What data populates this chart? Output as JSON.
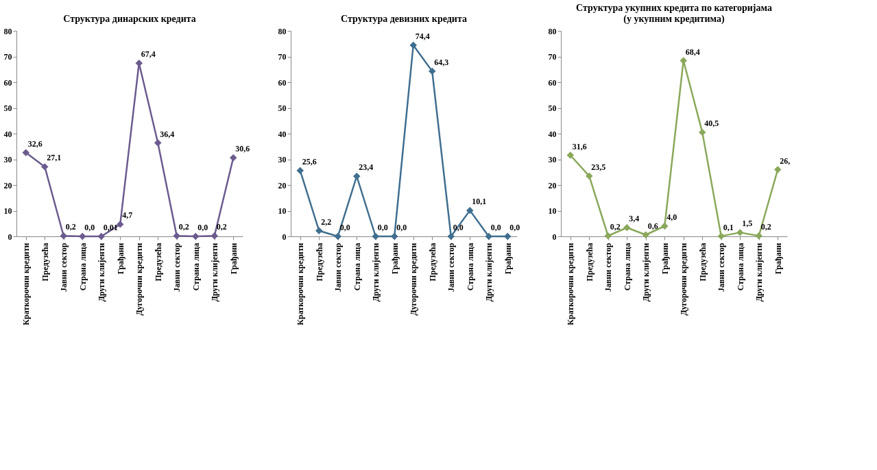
{
  "chart_data": [
    {
      "type": "line",
      "title": "Структура динарских кредита",
      "categories": [
        "Краткорочни кредити",
        "Предузећа",
        "Јавни сектор",
        "Страна лица",
        "Други клијенти",
        "Грађани",
        "Дугорочни кредити",
        "Предузећа",
        "Јавни сектор",
        "Страна лица",
        "Други клијенти",
        "Грађани"
      ],
      "series": [
        {
          "color": "#6b5b8e",
          "values": [
            32.6,
            27.1,
            0.2,
            0.0,
            0.01,
            4.7,
            67.4,
            36.4,
            0.2,
            0.0,
            0.2,
            30.6
          ],
          "value_labels": [
            "32,6",
            "27,1",
            "0,2",
            "0,0",
            "0,01",
            "4,7",
            "67,4",
            "36,4",
            "0,2",
            "0,0",
            "0,2",
            "30,6"
          ]
        }
      ],
      "ylim": [
        0,
        80
      ],
      "yticks": [
        0,
        10,
        20,
        30,
        40,
        50,
        60,
        70,
        80
      ],
      "grid": false,
      "marker": "diamond",
      "line_style": "solid"
    },
    {
      "type": "line",
      "title": "Структура девизних кредита",
      "categories": [
        "Краткорочни кредити",
        "Предузећа",
        "Јавни сектор",
        "Страна лица",
        "Други клијенти",
        "Грађани",
        "Дугорочни кредити",
        "Предузећа",
        "Јавни сектор",
        "Страна лица",
        "Други клијенти",
        "Грађани"
      ],
      "series": [
        {
          "color": "#3f6e8f",
          "values": [
            25.6,
            2.2,
            0.0,
            23.4,
            0.0,
            0.0,
            74.4,
            64.3,
            0.0,
            10.1,
            0.0,
            0.0
          ],
          "value_labels": [
            "25,6",
            "2,2",
            "0,0",
            "23,4",
            "0,0",
            "0,0",
            "74,4",
            "64,3",
            "0,0",
            "10,1",
            "0,0",
            "0,0"
          ]
        }
      ],
      "ylim": [
        0,
        80
      ],
      "yticks": [
        0,
        10,
        20,
        30,
        40,
        50,
        60,
        70,
        80
      ],
      "grid": false,
      "marker": "diamond",
      "line_style": "solid"
    },
    {
      "type": "line",
      "title": "Структура укупних кредита по категоријама\n(у укупним кредитима)",
      "categories": [
        "Краткорочни кредити",
        "Предузећа",
        "Јавни сектор",
        "Страна лица",
        "Други клијенти",
        "Грађани",
        "Дугорочни кредити",
        "Предузећа",
        "Јавни сектор",
        "Страна лица",
        "Други клијенти",
        "Грађани"
      ],
      "series": [
        {
          "color": "#8aa85a",
          "values": [
            31.6,
            23.5,
            0.2,
            3.4,
            0.6,
            4.0,
            68.4,
            40.5,
            0.1,
            1.5,
            0.2,
            26.0
          ],
          "value_labels": [
            "31,6",
            "23,5",
            "0,2",
            "3,4",
            "0,6",
            "4,0",
            "68,4",
            "40,5",
            "0,1",
            "1,5",
            "0,2",
            "26,"
          ]
        }
      ],
      "ylim": [
        0,
        80
      ],
      "yticks": [
        0,
        10,
        20,
        30,
        40,
        50,
        60,
        70,
        80
      ],
      "grid": false,
      "marker": "diamond",
      "line_style": "solid"
    }
  ]
}
